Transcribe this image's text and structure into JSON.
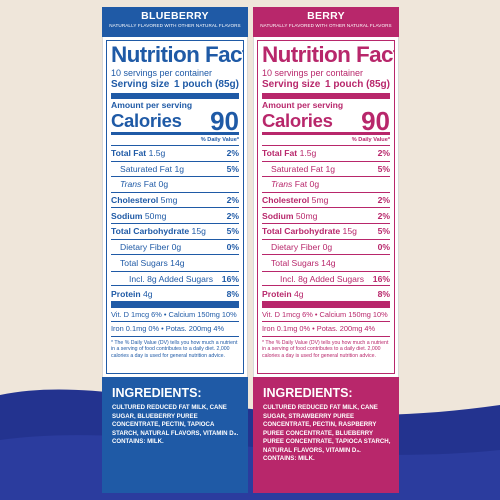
{
  "panels": [
    {
      "flavor": "BLUEBERRY",
      "subtitle": "NATURALLY FLAVORED WITH OTHER NATURAL FLAVORS",
      "title": "Nutrition Facts",
      "servings": "10 servings per container",
      "serving_size_label": "Serving size",
      "serving_size_value": "1 pouch (85g)",
      "amount_per_serving": "Amount per serving",
      "calories_label": "Calories",
      "calories_value": "90",
      "dv_header": "% Daily Value*",
      "rows": [
        {
          "name": "Total Fat",
          "amount": "1.5g",
          "pct": "2%"
        },
        {
          "name": "Saturated Fat",
          "amount": "1g",
          "pct": "5%"
        },
        {
          "name": "Trans",
          "amount": "Fat 0g",
          "pct": ""
        },
        {
          "name": "Cholesterol",
          "amount": "5mg",
          "pct": "2%"
        },
        {
          "name": "Sodium",
          "amount": "50mg",
          "pct": "2%"
        },
        {
          "name": "Total Carbohydrate",
          "amount": "15g",
          "pct": "5%"
        },
        {
          "name": "Dietary Fiber",
          "amount": "0g",
          "pct": "0%"
        },
        {
          "name": "Total Sugars",
          "amount": "14g",
          "pct": ""
        },
        {
          "name": "Incl. 8g Added Sugars",
          "amount": "",
          "pct": "16%"
        },
        {
          "name": "Protein",
          "amount": "4g",
          "pct": "8%"
        }
      ],
      "vitamins_1": "Vit. D 1mcg 6% • Calcium 150mg 10%",
      "vitamins_2": "Iron 0.1mg 0% • Potas. 200mg 4%",
      "footnote": "* The % Daily Value (DV) tells you how much a nutrient in a serving of food contributes to a daily diet. 2,000 calories a day is used for general nutrition advice.",
      "ingredients_title": "INGREDIENTS:",
      "ingredients_text": "CULTURED REDUCED FAT MILK, CANE SUGAR, BLUEBERRY PUREE CONCENTRATE, PECTIN, TAPIOCA STARCH, NATURAL FLAVORS, VITAMIN D₃.",
      "contains": "CONTAINS: MILK.",
      "color": "#1f5aa6"
    },
    {
      "flavor": "BERRY",
      "subtitle": "NATURALLY FLAVORED WITH OTHER NATURAL FLAVORS",
      "title": "Nutrition Facts",
      "servings": "10 servings per container",
      "serving_size_label": "Serving size",
      "serving_size_value": "1 pouch (85g)",
      "amount_per_serving": "Amount per serving",
      "calories_label": "Calories",
      "calories_value": "90",
      "dv_header": "% Daily Value*",
      "rows": [
        {
          "name": "Total Fat",
          "amount": "1.5g",
          "pct": "2%"
        },
        {
          "name": "Saturated Fat",
          "amount": "1g",
          "pct": "5%"
        },
        {
          "name": "Trans",
          "amount": "Fat 0g",
          "pct": ""
        },
        {
          "name": "Cholesterol",
          "amount": "5mg",
          "pct": "2%"
        },
        {
          "name": "Sodium",
          "amount": "50mg",
          "pct": "2%"
        },
        {
          "name": "Total Carbohydrate",
          "amount": "15g",
          "pct": "5%"
        },
        {
          "name": "Dietary Fiber",
          "amount": "0g",
          "pct": "0%"
        },
        {
          "name": "Total Sugars",
          "amount": "14g",
          "pct": ""
        },
        {
          "name": "Incl. 8g Added Sugars",
          "amount": "",
          "pct": "16%"
        },
        {
          "name": "Protein",
          "amount": "4g",
          "pct": "8%"
        }
      ],
      "vitamins_1": "Vit. D 1mcg 6% • Calcium 150mg 10%",
      "vitamins_2": "Iron 0.1mg 0% • Potas. 200mg 4%",
      "footnote": "* The % Daily Value (DV) tells you how much a nutrient in a serving of food contributes to a daily diet. 2,000 calories a day is used for general nutrition advice.",
      "ingredients_title": "INGREDIENTS:",
      "ingredients_text": "CULTURED REDUCED FAT MILK, CANE SUGAR, STRAWBERRY PUREE CONCENTRATE, PECTIN, RASPBERRY PUREE CONCENTRATE, BLUEBERRY PUREE CONCENTRATE, TAPIOCA STARCH, NATURAL FLAVORS, VITAMIN D₃.",
      "contains": "CONTAINS: MILK.",
      "color": "#b8276b"
    }
  ],
  "background": {
    "cream": "#efe6da",
    "navy": "#23338f"
  }
}
